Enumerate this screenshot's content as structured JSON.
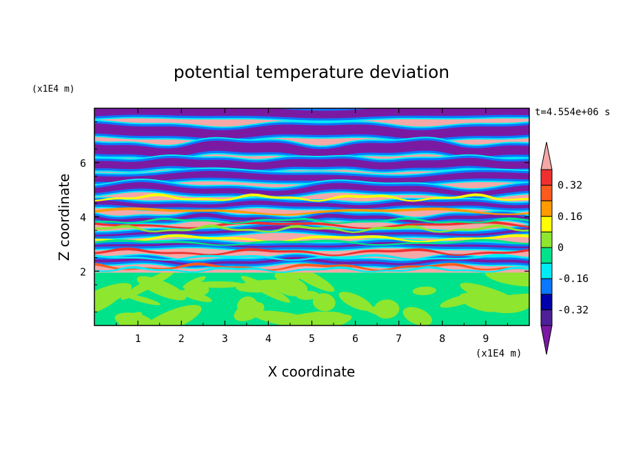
{
  "chart_data": {
    "type": "heatmap",
    "title": "potential temperature deviation",
    "xlabel": "X coordinate",
    "ylabel": "Z coordinate",
    "x_unit": "(x1E4 m)",
    "y_unit": "(x1E4 m)",
    "time_label": "t=4.554e+06 s",
    "xlim": [
      0,
      10
    ],
    "ylim": [
      0,
      8
    ],
    "xticks": [
      "1",
      "2",
      "3",
      "4",
      "5",
      "6",
      "7",
      "8",
      "9"
    ],
    "yticks": [
      "2",
      "4",
      "6"
    ],
    "colorbar": {
      "labels": [
        "0.32",
        "0.16",
        "0",
        "-0.16",
        "-0.32"
      ],
      "label_values": [
        0.32,
        0.16,
        0,
        -0.16,
        -0.32
      ],
      "levels_top_to_bottom": [
        {
          "range": "> 0.40",
          "color": "#f4a8a8"
        },
        {
          "range": "0.32 to 0.40",
          "color": "#f03030"
        },
        {
          "range": "0.24 to 0.32",
          "color": "#ff5a1e"
        },
        {
          "range": "0.16 to 0.24",
          "color": "#ff9a00"
        },
        {
          "range": "0.08 to 0.16",
          "color": "#ffff00"
        },
        {
          "range": "0 to 0.08",
          "color": "#8ee62e"
        },
        {
          "range": "-0.08 to 0",
          "color": "#00e38a"
        },
        {
          "range": "-0.16 to -0.08",
          "color": "#00ecf5"
        },
        {
          "range": "-0.24 to -0.16",
          "color": "#0a78ff"
        },
        {
          "range": "-0.32 to -0.24",
          "color": "#0000aa"
        },
        {
          "range": "-0.40 to -0.32",
          "color": "#4d2099"
        },
        {
          "range": "< -0.40",
          "color": "#7a1aa3"
        }
      ]
    },
    "regions": [
      {
        "z_range": [
          0,
          1.95
        ],
        "description": "mixed green / lime field (values near 0)"
      },
      {
        "z_range": [
          1.95,
          8
        ],
        "description": "alternating horizontal layers of pink (high) and purple (low) with multicolor transitions"
      }
    ]
  }
}
